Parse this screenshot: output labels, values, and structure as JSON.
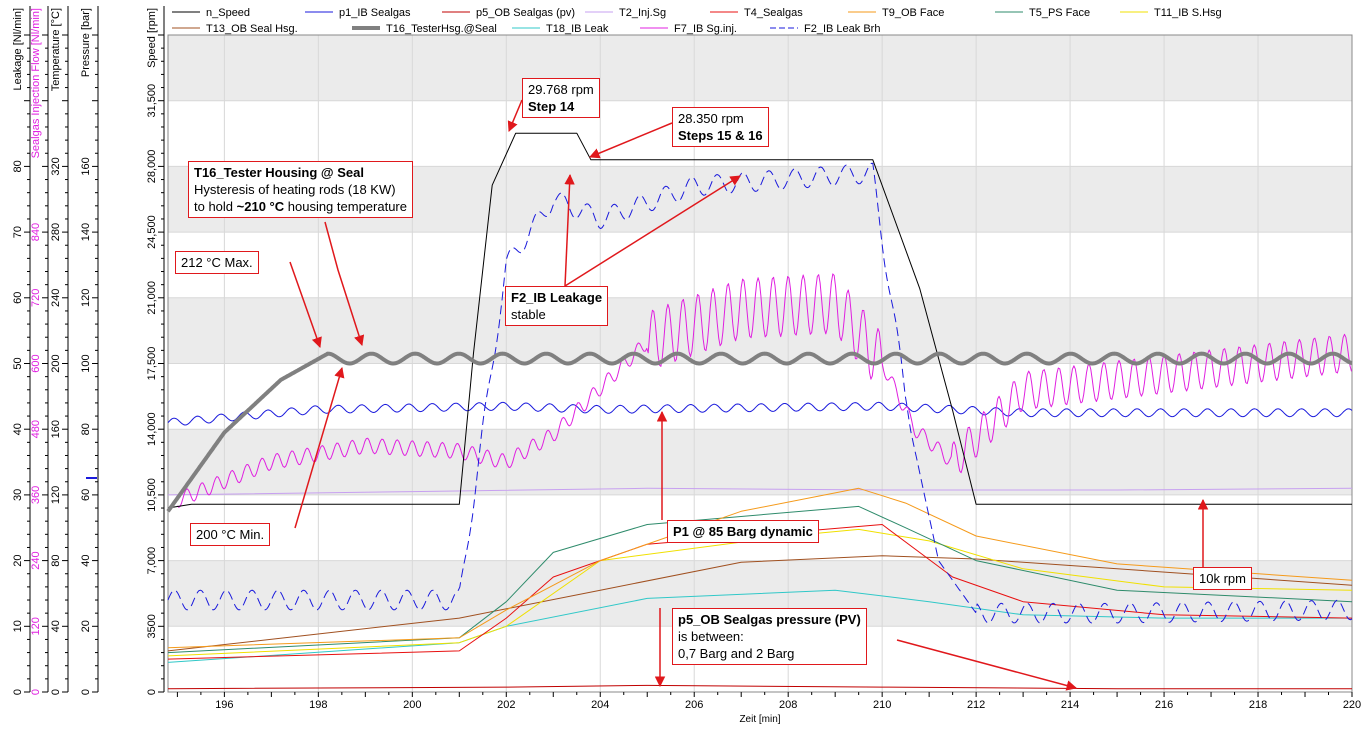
{
  "legend": [
    {
      "label": "n_Speed",
      "color": "#000000",
      "dash": "none",
      "width": 1
    },
    {
      "label": "p1_IB Sealgas",
      "color": "#1a1adc",
      "dash": "none",
      "width": 1
    },
    {
      "label": "p5_OB Sealgas (pv)",
      "color": "#c00000",
      "dash": "none",
      "width": 1
    },
    {
      "label": "T2_Inj.Sg",
      "color": "#c7a0f0",
      "dash": "none",
      "width": 1
    },
    {
      "label": "T4_Sealgas",
      "color": "#e81010",
      "dash": "none",
      "width": 1
    },
    {
      "label": "T9_OB Face",
      "color": "#f59a1a",
      "dash": "none",
      "width": 1
    },
    {
      "label": "T5_PS Face",
      "color": "#2e8b6b",
      "dash": "none",
      "width": 1
    },
    {
      "label": "T11_IB S.Hsg",
      "color": "#f0e000",
      "dash": "none",
      "width": 1
    },
    {
      "label": "T13_OB Seal Hsg.",
      "color": "#a05020",
      "dash": "none",
      "width": 1
    },
    {
      "label": "T16_TesterHsg.@Seal",
      "color": "#808080",
      "dash": "none",
      "width": 4
    },
    {
      "label": "T18_IB Leak",
      "color": "#30c8c8",
      "dash": "none",
      "width": 1
    },
    {
      "label": "F7_IB Sg.inj.",
      "color": "#e020e0",
      "dash": "none",
      "width": 1
    },
    {
      "label": "F2_IB Leak Brh",
      "color": "#1a1adc",
      "dash": "dashed",
      "width": 1
    }
  ],
  "axes": {
    "leakage": {
      "title": "Leakage [Nl/min]",
      "ticks": [
        "0",
        "10",
        "20",
        "30",
        "40",
        "50",
        "60",
        "70",
        "80"
      ]
    },
    "sealgas_flow": {
      "title": "Sealgas Injection Flow [Nl/min]",
      "ticks": [
        "0",
        "120",
        "240",
        "360",
        "480",
        "600",
        "720",
        "840"
      ],
      "color": "#e020e0"
    },
    "temperature": {
      "title": "Temperature [°C]",
      "ticks": [
        "0",
        "40",
        "80",
        "120",
        "160",
        "200",
        "240",
        "280",
        "320"
      ]
    },
    "pressure": {
      "title": "Pressure [bar]",
      "ticks": [
        "0",
        "20",
        "40",
        "60",
        "80",
        "100",
        "120",
        "140",
        "160"
      ]
    },
    "speed": {
      "title": "Speed [rpm]",
      "ticks": [
        "0",
        "3500",
        "7,000",
        "10,500",
        "14,000",
        "17,500",
        "21,000",
        "24,500",
        "28,000",
        "31,500"
      ]
    },
    "x": {
      "title": "Zeit [min]",
      "ticks": [
        "196",
        "198",
        "200",
        "202",
        "204",
        "206",
        "208",
        "210",
        "212",
        "214",
        "216",
        "218",
        "220"
      ]
    }
  },
  "annotations": {
    "step14_value": "29.768 rpm",
    "step14_label": "Step 14",
    "steps1516_value": "28.350 rpm",
    "steps1516_label": "Steps 15 & 16",
    "t16_title": "T16_Tester Housing @ Seal",
    "t16_line1": "Hysteresis of heating rods (18 KW)",
    "t16_line2_pre": "to hold ",
    "t16_line2_bold": "~210 °C",
    "t16_line2_post": " housing temperature",
    "max_label": "212 °C Max.",
    "min_label": "200 °C Min.",
    "f2_title": "F2_IB Leakage",
    "f2_sub": "stable",
    "p1_label": "P1 @ 85 Barg dynamic",
    "k10_label": "10k rpm",
    "p5_title": "p5_OB Sealgas pressure (PV)",
    "p5_line1": "is between:",
    "p5_line2": "0,7 Barg and 2 Barg"
  },
  "chart_data": {
    "type": "line",
    "xlabel": "Zeit [min]",
    "xlim": [
      194.8,
      220
    ],
    "ylabel": "Speed [rpm]",
    "ylim": [
      0,
      35000
    ],
    "series": [
      {
        "name": "n_Speed",
        "axis": "speed [rpm]",
        "points": [
          [
            194.8,
            9800
          ],
          [
            195.3,
            10000
          ],
          [
            201.0,
            10000
          ],
          [
            201.3,
            18000
          ],
          [
            201.7,
            27000
          ],
          [
            202.2,
            29768
          ],
          [
            203.5,
            29768
          ],
          [
            203.8,
            28350
          ],
          [
            209.8,
            28350
          ],
          [
            210.8,
            21500
          ],
          [
            211.5,
            15000
          ],
          [
            212.0,
            10000
          ],
          [
            220,
            10000
          ]
        ]
      },
      {
        "name": "p1_IB Sealgas",
        "axis": "pressure [bar]",
        "points": [
          [
            194.8,
            82
          ],
          [
            198,
            86
          ],
          [
            202,
            87
          ],
          [
            204,
            86
          ],
          [
            210,
            87
          ],
          [
            213,
            85
          ],
          [
            220,
            85
          ]
        ]
      },
      {
        "name": "p5_OB Sealgas (pv)",
        "axis": "pressure [bar]",
        "points": [
          [
            194.8,
            1
          ],
          [
            202,
            1.5
          ],
          [
            205,
            2
          ],
          [
            210,
            1.5
          ],
          [
            215,
            1
          ],
          [
            220,
            1
          ]
        ]
      },
      {
        "name": "T2_Inj.Sg",
        "axis": "temperature [°C]",
        "points": [
          [
            194.8,
            120
          ],
          [
            200,
            122
          ],
          [
            205,
            124
          ],
          [
            210,
            123
          ],
          [
            215,
            123
          ],
          [
            220,
            124
          ]
        ]
      },
      {
        "name": "T4_Sealgas",
        "axis": "temperature [°C]",
        "points": [
          [
            194.8,
            20
          ],
          [
            201,
            25
          ],
          [
            202,
            45
          ],
          [
            203,
            70
          ],
          [
            205,
            90
          ],
          [
            210,
            102
          ],
          [
            211.5,
            70
          ],
          [
            213,
            55
          ],
          [
            216,
            47
          ],
          [
            220,
            45
          ]
        ]
      },
      {
        "name": "T9_OB Face",
        "axis": "temperature [°C]",
        "points": [
          [
            194.8,
            27
          ],
          [
            201,
            33
          ],
          [
            202,
            50
          ],
          [
            204,
            80
          ],
          [
            207,
            110
          ],
          [
            209.5,
            124
          ],
          [
            210.5,
            115
          ],
          [
            212,
            95
          ],
          [
            215,
            78
          ],
          [
            220,
            68
          ]
        ]
      },
      {
        "name": "T5_PS Face",
        "axis": "temperature [°C]",
        "points": [
          [
            194.8,
            24
          ],
          [
            201,
            33
          ],
          [
            202,
            55
          ],
          [
            203,
            85
          ],
          [
            205,
            102
          ],
          [
            209.5,
            113
          ],
          [
            210.5,
            100
          ],
          [
            212,
            80
          ],
          [
            215,
            62
          ],
          [
            220,
            55
          ]
        ]
      },
      {
        "name": "T11_IB S.Hsg",
        "axis": "temperature [°C]",
        "points": [
          [
            194.8,
            22
          ],
          [
            201,
            30
          ],
          [
            202,
            40
          ],
          [
            204,
            80
          ],
          [
            208,
            95
          ],
          [
            209.5,
            99
          ],
          [
            211,
            92
          ],
          [
            213,
            75
          ],
          [
            216,
            64
          ],
          [
            220,
            62
          ]
        ]
      },
      {
        "name": "T13_OB Seal Hsg.",
        "axis": "temperature [°C]",
        "points": [
          [
            194.8,
            25
          ],
          [
            201,
            45
          ],
          [
            204,
            62
          ],
          [
            207,
            79
          ],
          [
            210,
            83
          ],
          [
            212,
            81
          ],
          [
            215,
            75
          ],
          [
            220,
            65
          ]
        ]
      },
      {
        "name": "T16_TesterHsg.@Seal",
        "axis": "temperature [°C]",
        "points": [
          [
            194.8,
            110
          ],
          [
            196,
            160
          ],
          [
            198.2,
            206
          ],
          [
            198.6,
            200
          ],
          [
            199.1,
            206
          ],
          [
            199.6,
            200
          ],
          [
            220,
            206
          ]
        ]
      },
      {
        "name": "T18_IB Leak",
        "axis": "temperature [°C]",
        "points": [
          [
            194.8,
            18
          ],
          [
            201,
            30
          ],
          [
            202,
            40
          ],
          [
            205,
            57
          ],
          [
            209,
            62
          ],
          [
            211,
            55
          ],
          [
            213,
            47
          ],
          [
            216,
            45
          ],
          [
            220,
            45
          ]
        ]
      },
      {
        "name": "F7_IB Sg.inj.",
        "axis": "sealgas flow [Nl/min]",
        "points": [
          [
            195,
            350
          ],
          [
            197,
            420
          ],
          [
            199,
            450
          ],
          [
            201,
            440
          ],
          [
            202,
            420
          ],
          [
            203,
            470
          ],
          [
            205,
            640
          ],
          [
            207,
            700
          ],
          [
            209,
            710
          ],
          [
            210,
            600
          ],
          [
            210.7,
            480
          ],
          [
            211.5,
            420
          ],
          [
            213,
            550
          ],
          [
            216,
            580
          ],
          [
            220,
            620
          ]
        ]
      },
      {
        "name": "F2_IB Leak Brh",
        "axis": "leakage [Nl/min]",
        "points": [
          [
            194.8,
            14
          ],
          [
            201,
            14
          ],
          [
            202,
            65
          ],
          [
            203,
            75
          ],
          [
            204,
            72
          ],
          [
            206,
            77
          ],
          [
            209.8,
            79
          ],
          [
            210.6,
            40
          ],
          [
            211.2,
            20
          ],
          [
            212,
            12
          ],
          [
            215,
            12
          ],
          [
            220,
            12.5
          ]
        ]
      }
    ]
  }
}
